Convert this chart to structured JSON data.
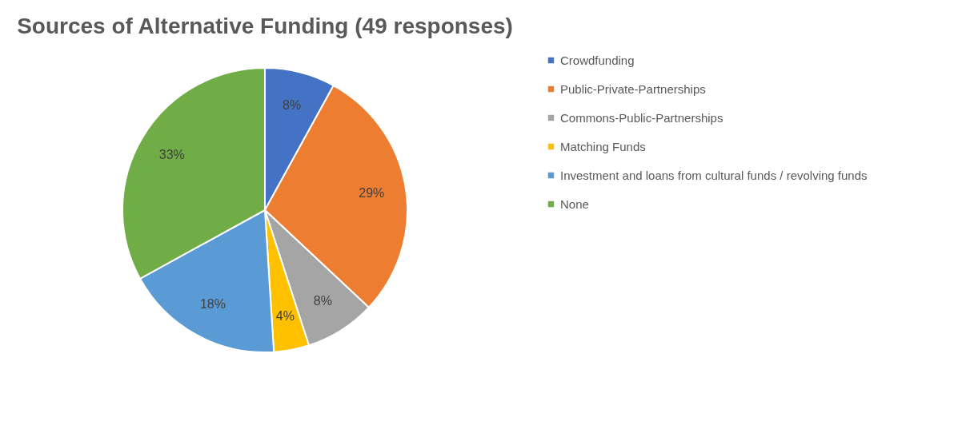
{
  "chart_data": {
    "type": "pie",
    "title": "Sources of Alternative Funding (49 responses)",
    "categories": [
      "Crowdfunding",
      "Public-Private-Partnerships",
      "Commons-Public-Partnerships",
      "Matching Funds",
      "Investment and loans from cultural funds / revolving funds",
      "None"
    ],
    "values": [
      8,
      29,
      8,
      4,
      18,
      33
    ],
    "colors": [
      "#4472c4",
      "#ed7d31",
      "#a5a5a5",
      "#ffc000",
      "#5b9bd5",
      "#70ad47"
    ],
    "value_labels": [
      "8%",
      "29%",
      "8%",
      "4%",
      "18%",
      "33%"
    ],
    "legend": "right"
  }
}
